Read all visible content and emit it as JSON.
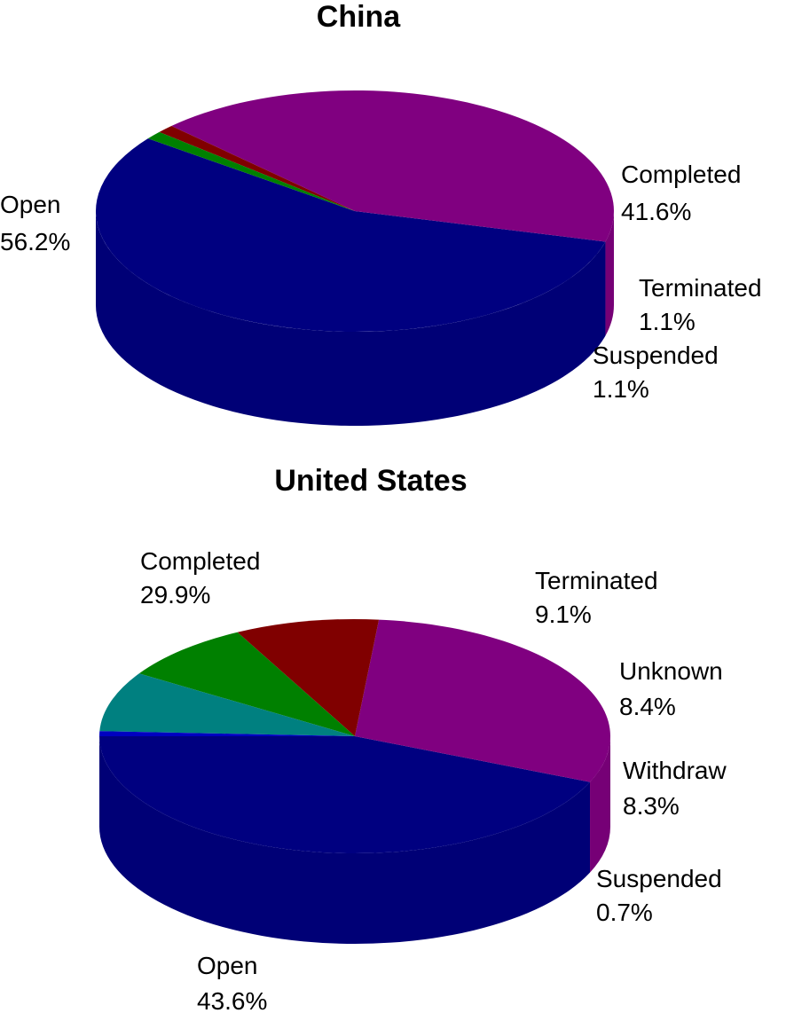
{
  "chart_data": [
    {
      "type": "pie",
      "title": "China",
      "colors": {
        "Open": "#000080",
        "Completed": "#800080",
        "Terminated": "#800000",
        "Suspended": "#008000"
      },
      "slices": [
        {
          "label": "Open",
          "pct_label": "56.2%",
          "value": 56.2
        },
        {
          "label": "Completed",
          "pct_label": "41.6%",
          "value": 41.6
        },
        {
          "label": "Terminated",
          "pct_label": "1.1%",
          "value": 1.1
        },
        {
          "label": "Suspended",
          "pct_label": "1.1%",
          "value": 1.1
        }
      ]
    },
    {
      "type": "pie",
      "title": "United States",
      "colors": {
        "Open": "#000080",
        "Completed": "#800080",
        "Terminated": "#800000",
        "Unknown": "#008000",
        "Withdraw": "#008080",
        "Suspended": "#0000c0"
      },
      "slices": [
        {
          "label": "Open",
          "pct_label": "43.6%",
          "value": 43.6
        },
        {
          "label": "Completed",
          "pct_label": "29.9%",
          "value": 29.9
        },
        {
          "label": "Terminated",
          "pct_label": "9.1%",
          "value": 9.1
        },
        {
          "label": "Unknown",
          "pct_label": "8.4%",
          "value": 8.4
        },
        {
          "label": "Withdraw",
          "pct_label": "8.3%",
          "value": 8.3
        },
        {
          "label": "Suspended",
          "pct_label": "0.7%",
          "value": 0.7
        }
      ]
    }
  ]
}
